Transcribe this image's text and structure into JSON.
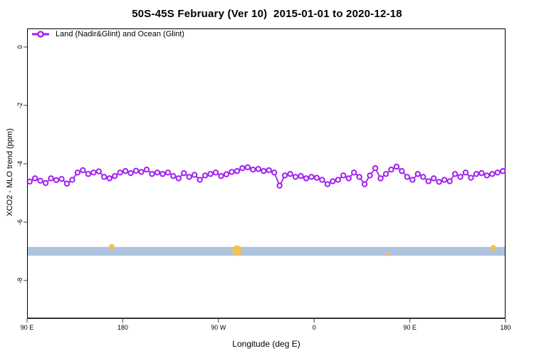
{
  "title": "50S-45S February (Ver 10)  2015-01-01 to 2020-12-18",
  "legend": {
    "label": "Land (Nadir&Glint) and Ocean (Glint)"
  },
  "axes": {
    "x_title": "Longitude (deg E)",
    "y_title": "XCO2 - MLO trend (ppm)"
  },
  "colors": {
    "series": "#A020F0",
    "band": "#AEC3DE",
    "outlier": "#F5C054",
    "axis": "#333333",
    "tick": "#444444"
  },
  "chart_data": {
    "type": "line",
    "title": "50S-45S February (Ver 10)  2015-01-01 to 2020-12-18",
    "xlabel": "Longitude (deg E)",
    "ylabel": "XCO2 - MLO trend (ppm)",
    "xlim_deg_east_wrapped": [
      90,
      540
    ],
    "ylim": [
      -9.3,
      0.65
    ],
    "grid": false,
    "legend_position": "top-left-inside",
    "x_tick_values": [
      90,
      180,
      270,
      360,
      450,
      540
    ],
    "x_tick_labels": [
      "90 E",
      "180",
      "90 W",
      "0",
      "90 E",
      "180"
    ],
    "y_tick_values": [
      0,
      -2,
      -4,
      -6,
      -8
    ],
    "y_tick_labels": [
      "0",
      "-2",
      "-4",
      "-6",
      "-8"
    ],
    "series": [
      {
        "name": "Land (Nadir&Glint) and Ocean (Glint)",
        "color": "#A020F0",
        "marker": "open-circle",
        "x": [
          92.5,
          97.5,
          102.5,
          107.5,
          112.5,
          117.5,
          122.5,
          127.5,
          132.5,
          137.5,
          142.5,
          147.5,
          152.5,
          157.5,
          162.5,
          167.5,
          172.5,
          177.5,
          182.5,
          187.5,
          192.5,
          197.5,
          202.5,
          207.5,
          212.5,
          217.5,
          222.5,
          227.5,
          232.5,
          237.5,
          242.5,
          247.5,
          252.5,
          257.5,
          262.5,
          267.5,
          272.5,
          277.5,
          282.5,
          287.5,
          292.5,
          297.5,
          302.5,
          307.5,
          312.5,
          317.5,
          322.5,
          327.5,
          332.5,
          337.5,
          342.5,
          347.5,
          352.5,
          357.5,
          362.5,
          367.5,
          372.5,
          377.5,
          382.5,
          387.5,
          392.5,
          397.5,
          402.5,
          407.5,
          412.5,
          417.5,
          422.5,
          427.5,
          432.5,
          437.5,
          442.5,
          447.5,
          452.5,
          457.5,
          462.5,
          467.5,
          472.5,
          477.5,
          482.5,
          487.5,
          492.5,
          497.5,
          502.5,
          507.5,
          512.5,
          517.5,
          522.5,
          527.5,
          532.5,
          537.5
        ],
        "values": [
          -4.61,
          -4.5,
          -4.58,
          -4.66,
          -4.5,
          -4.56,
          -4.52,
          -4.68,
          -4.55,
          -4.3,
          -4.22,
          -4.35,
          -4.3,
          -4.26,
          -4.45,
          -4.5,
          -4.42,
          -4.3,
          -4.25,
          -4.32,
          -4.24,
          -4.28,
          -4.2,
          -4.35,
          -4.3,
          -4.35,
          -4.3,
          -4.42,
          -4.5,
          -4.32,
          -4.45,
          -4.38,
          -4.55,
          -4.4,
          -4.35,
          -4.3,
          -4.42,
          -4.36,
          -4.28,
          -4.25,
          -4.15,
          -4.12,
          -4.2,
          -4.18,
          -4.25,
          -4.22,
          -4.3,
          -4.75,
          -4.4,
          -4.35,
          -4.45,
          -4.42,
          -4.5,
          -4.45,
          -4.48,
          -4.55,
          -4.7,
          -4.6,
          -4.55,
          -4.4,
          -4.5,
          -4.3,
          -4.45,
          -4.7,
          -4.4,
          -4.15,
          -4.5,
          -4.35,
          -4.2,
          -4.1,
          -4.25,
          -4.45,
          -4.55,
          -4.35,
          -4.45,
          -4.6,
          -4.5,
          -4.62,
          -4.55,
          -4.6,
          -4.35,
          -4.45,
          -4.3,
          -4.48,
          -4.35,
          -4.32,
          -4.4,
          -4.35,
          -4.3,
          -4.25
        ]
      }
    ],
    "band": {
      "y_min": -7.15,
      "y_max": -6.85,
      "color": "#AEC3DE",
      "full_width": true
    },
    "outlier_marks": [
      {
        "x": 169.7,
        "y": -6.85,
        "radius": 4
      },
      {
        "x": 287.5,
        "y": -6.97,
        "radius": 7
      },
      {
        "x": 429.5,
        "y": -7.1,
        "radius": 2.5
      },
      {
        "x": 528.5,
        "y": -6.88,
        "radius": 4
      }
    ],
    "outlier_color": "#F5C054"
  }
}
